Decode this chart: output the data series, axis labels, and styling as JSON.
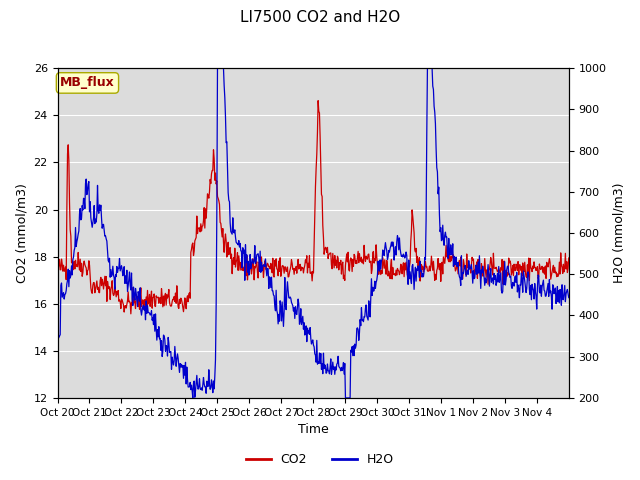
{
  "title": "LI7500 CO2 and H2O",
  "xlabel": "Time",
  "ylabel_left": "CO2 (mmol/m3)",
  "ylabel_right": "H2O (mmol/m3)",
  "co2_ylim": [
    12,
    26
  ],
  "h2o_ylim": [
    200,
    1000
  ],
  "co2_yticks": [
    12,
    14,
    16,
    18,
    20,
    22,
    24,
    26
  ],
  "h2o_yticks": [
    200,
    300,
    400,
    500,
    600,
    700,
    800,
    900,
    1000
  ],
  "xtick_labels": [
    "Oct 20",
    "Oct 21",
    "Oct 22",
    "Oct 23",
    "Oct 24",
    "Oct 25",
    "Oct 26",
    "Oct 27",
    "Oct 28",
    "Oct 29",
    "Oct 30",
    "Oct 31",
    "Nov 1",
    "Nov 2",
    "Nov 3",
    "Nov 4"
  ],
  "co2_color": "#cc0000",
  "h2o_color": "#0000cc",
  "plot_bg_color": "#dcdcdc",
  "watermark_text": "MB_flux",
  "watermark_fg": "#990000",
  "watermark_bg": "#ffffcc",
  "title_fontsize": 11,
  "axis_label_fontsize": 9,
  "tick_fontsize": 8,
  "legend_fontsize": 9
}
